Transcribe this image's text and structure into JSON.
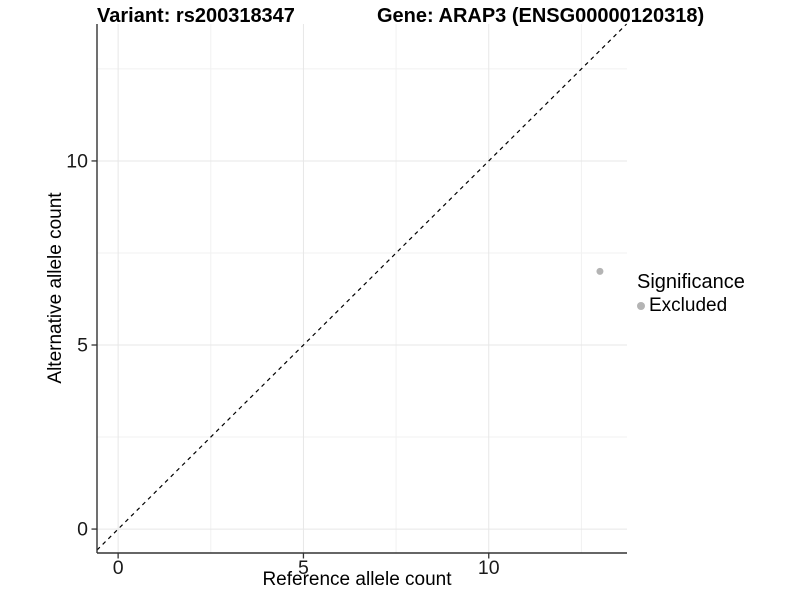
{
  "chart_data": {
    "type": "scatter",
    "title_left": "Variant: rs200318347",
    "title_right": "Gene: ARAP3 (ENSG00000120318)",
    "xlabel": "Reference allele count",
    "ylabel": "Alternative allele count",
    "xlim": [
      -0.57,
      13.73
    ],
    "ylim": [
      -0.65,
      13.72
    ],
    "x_ticks": [
      0,
      5,
      10
    ],
    "y_ticks": [
      0,
      5,
      10
    ],
    "x_minor_ticks": [
      2.5,
      7.5,
      12.5
    ],
    "y_minor_ticks": [
      2.5,
      7.5,
      12.5
    ],
    "grid": "major+minor",
    "reference_line": {
      "type": "identity",
      "equation": "y = x",
      "style": "dashed",
      "color": "#000000"
    },
    "series": [
      {
        "name": "Excluded",
        "color": "#b4b4b4",
        "points": [
          {
            "x": 13,
            "y": 7
          }
        ]
      }
    ],
    "legend": {
      "title": "Significance",
      "position": "right",
      "entries": [
        {
          "label": "Excluded",
          "color": "#b4b4b4",
          "marker": "circle"
        }
      ]
    },
    "colors": {
      "axis_line": "#333333",
      "tick_text": "#1a1a1a",
      "grid_major": "#e7e7e7",
      "grid_minor": "#f1f1f1",
      "point": "#b4b4b4"
    }
  }
}
